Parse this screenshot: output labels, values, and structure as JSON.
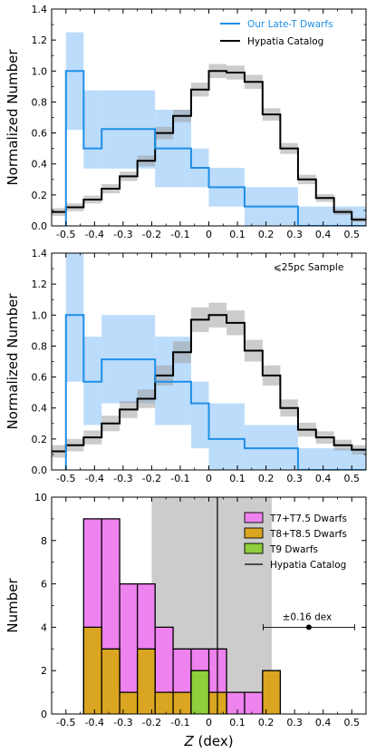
{
  "chart_data": [
    {
      "type": "histogram",
      "panel": "top",
      "ylabel": "Normalized Number",
      "ylim": [
        0,
        1.4
      ],
      "xlim": [
        -0.55,
        0.55
      ],
      "yticks": [
        "0.0",
        "0.2",
        "0.4",
        "0.6",
        "0.8",
        "1.0",
        "1.2",
        "1.4"
      ],
      "xticks": [
        "-0.5",
        "-0.4",
        "-0.3",
        "-0.2",
        "-0.1",
        "0",
        "0.1",
        "0.2",
        "0.3",
        "0.4",
        "0.5"
      ],
      "legend": {
        "position": "top-right",
        "entries": [
          {
            "label": "Our Late-T Dwarfs",
            "color": "#1f8fe6"
          },
          {
            "label": "Hypatia Catalog",
            "color": "#000000"
          }
        ]
      },
      "series": [
        {
          "name": "Our Late-T Dwarfs",
          "color": "#1f8fe6",
          "band_color": "#b8dafb",
          "bins": [
            {
              "x0": -0.5,
              "x1": -0.438,
              "y": 1.0,
              "lo": 0.62,
              "hi": 1.25
            },
            {
              "x0": -0.438,
              "x1": -0.375,
              "y": 0.5,
              "lo": 0.37,
              "hi": 0.875
            },
            {
              "x0": -0.375,
              "x1": -0.188,
              "y": 0.625,
              "lo": 0.37,
              "hi": 0.875
            },
            {
              "x0": -0.188,
              "x1": -0.062,
              "y": 0.5,
              "lo": 0.25,
              "hi": 0.75
            },
            {
              "x0": -0.062,
              "x1": 0.0,
              "y": 0.375,
              "lo": 0.25,
              "hi": 0.5
            },
            {
              "x0": 0.0,
              "x1": 0.125,
              "y": 0.25,
              "lo": 0.125,
              "hi": 0.375
            },
            {
              "x0": 0.125,
              "x1": 0.312,
              "y": 0.125,
              "lo": 0.0,
              "hi": 0.25
            },
            {
              "x0": 0.312,
              "x1": 0.55,
              "y": 0.0,
              "lo": 0.0,
              "hi": 0.125
            }
          ]
        },
        {
          "name": "Hypatia Catalog",
          "color": "#000000",
          "band_color": "#c8c8c8",
          "bins": [
            {
              "x0": -0.55,
              "x1": -0.5,
              "y": 0.09,
              "err": 0.025
            },
            {
              "x0": -0.5,
              "x1": -0.438,
              "y": 0.12,
              "err": 0.025
            },
            {
              "x0": -0.438,
              "x1": -0.375,
              "y": 0.17,
              "err": 0.025
            },
            {
              "x0": -0.375,
              "x1": -0.312,
              "y": 0.24,
              "err": 0.03
            },
            {
              "x0": -0.312,
              "x1": -0.25,
              "y": 0.32,
              "err": 0.03
            },
            {
              "x0": -0.25,
              "x1": -0.188,
              "y": 0.42,
              "err": 0.035
            },
            {
              "x0": -0.188,
              "x1": -0.125,
              "y": 0.6,
              "err": 0.04
            },
            {
              "x0": -0.125,
              "x1": -0.062,
              "y": 0.71,
              "err": 0.04
            },
            {
              "x0": -0.062,
              "x1": 0.0,
              "y": 0.88,
              "err": 0.045
            },
            {
              "x0": 0.0,
              "x1": 0.062,
              "y": 1.0,
              "err": 0.045
            },
            {
              "x0": 0.062,
              "x1": 0.125,
              "y": 0.99,
              "err": 0.045
            },
            {
              "x0": 0.125,
              "x1": 0.188,
              "y": 0.93,
              "err": 0.045
            },
            {
              "x0": 0.188,
              "x1": 0.25,
              "y": 0.72,
              "err": 0.04
            },
            {
              "x0": 0.25,
              "x1": 0.312,
              "y": 0.5,
              "err": 0.035
            },
            {
              "x0": 0.312,
              "x1": 0.375,
              "y": 0.3,
              "err": 0.03
            },
            {
              "x0": 0.375,
              "x1": 0.438,
              "y": 0.18,
              "err": 0.025
            },
            {
              "x0": 0.438,
              "x1": 0.5,
              "y": 0.09,
              "err": 0.02
            },
            {
              "x0": 0.5,
              "x1": 0.55,
              "y": 0.04,
              "err": 0.015
            }
          ]
        }
      ]
    },
    {
      "type": "histogram",
      "panel": "middle",
      "ylabel": "Normalized Number",
      "ylim": [
        0,
        1.4
      ],
      "xlim": [
        -0.55,
        0.55
      ],
      "yticks": [
        "0.0",
        "0.2",
        "0.4",
        "0.6",
        "0.8",
        "1.0",
        "1.2",
        "1.4"
      ],
      "xticks": [
        "-0.5",
        "-0.4",
        "-0.3",
        "-0.2",
        "-0.1",
        "0",
        "0.1",
        "0.2",
        "0.3",
        "0.4",
        "0.5"
      ],
      "annotation": "⩽25pc Sample",
      "series": [
        {
          "name": "Our Late-T Dwarfs",
          "color": "#1f8fe6",
          "band_color": "#b8dafb",
          "bins": [
            {
              "x0": -0.5,
              "x1": -0.438,
              "y": 1.0,
              "lo": 0.57,
              "hi": 1.4
            },
            {
              "x0": -0.438,
              "x1": -0.375,
              "y": 0.57,
              "lo": 0.29,
              "hi": 0.86
            },
            {
              "x0": -0.375,
              "x1": -0.188,
              "y": 0.714,
              "lo": 0.43,
              "hi": 1.0
            },
            {
              "x0": -0.188,
              "x1": -0.062,
              "y": 0.57,
              "lo": 0.29,
              "hi": 0.86
            },
            {
              "x0": -0.062,
              "x1": 0.0,
              "y": 0.43,
              "lo": 0.14,
              "hi": 0.57
            },
            {
              "x0": 0.0,
              "x1": 0.125,
              "y": 0.2,
              "lo": 0.0,
              "hi": 0.43
            },
            {
              "x0": 0.125,
              "x1": 0.312,
              "y": 0.14,
              "lo": 0.0,
              "hi": 0.29
            },
            {
              "x0": 0.312,
              "x1": 0.55,
              "y": 0.0,
              "lo": 0.0,
              "hi": 0.14
            }
          ]
        },
        {
          "name": "Hypatia Catalog",
          "color": "#000000",
          "band_color": "#c8c8c8",
          "bins": [
            {
              "x0": -0.55,
              "x1": -0.5,
              "y": 0.12,
              "err": 0.04
            },
            {
              "x0": -0.5,
              "x1": -0.438,
              "y": 0.16,
              "err": 0.04
            },
            {
              "x0": -0.438,
              "x1": -0.375,
              "y": 0.21,
              "err": 0.045
            },
            {
              "x0": -0.375,
              "x1": -0.312,
              "y": 0.3,
              "err": 0.05
            },
            {
              "x0": -0.312,
              "x1": -0.25,
              "y": 0.39,
              "err": 0.055
            },
            {
              "x0": -0.25,
              "x1": -0.188,
              "y": 0.46,
              "err": 0.06
            },
            {
              "x0": -0.188,
              "x1": -0.125,
              "y": 0.61,
              "err": 0.065
            },
            {
              "x0": -0.125,
              "x1": -0.062,
              "y": 0.76,
              "err": 0.07
            },
            {
              "x0": -0.062,
              "x1": 0.0,
              "y": 0.97,
              "err": 0.08
            },
            {
              "x0": 0.0,
              "x1": 0.062,
              "y": 1.0,
              "err": 0.08
            },
            {
              "x0": 0.062,
              "x1": 0.125,
              "y": 0.95,
              "err": 0.08
            },
            {
              "x0": 0.125,
              "x1": 0.188,
              "y": 0.77,
              "err": 0.07
            },
            {
              "x0": 0.188,
              "x1": 0.25,
              "y": 0.61,
              "err": 0.065
            },
            {
              "x0": 0.25,
              "x1": 0.312,
              "y": 0.4,
              "err": 0.055
            },
            {
              "x0": 0.312,
              "x1": 0.375,
              "y": 0.26,
              "err": 0.045
            },
            {
              "x0": 0.375,
              "x1": 0.438,
              "y": 0.21,
              "err": 0.04
            },
            {
              "x0": 0.438,
              "x1": 0.5,
              "y": 0.16,
              "err": 0.035
            },
            {
              "x0": 0.5,
              "x1": 0.55,
              "y": 0.13,
              "err": 0.03
            }
          ]
        }
      ]
    },
    {
      "type": "stacked-histogram",
      "panel": "bottom",
      "ylabel": "Number",
      "xlabel_italic": "Z",
      "xlabel_rest": " (dex)",
      "ylim": [
        0,
        10
      ],
      "xlim": [
        -0.55,
        0.55
      ],
      "yticks": [
        "0",
        "2",
        "4",
        "6",
        "8",
        "10"
      ],
      "xticks": [
        "-0.5",
        "-0.4",
        "-0.3",
        "-0.2",
        "-0.1",
        "0",
        "0.1",
        "0.2",
        "0.3",
        "0.4",
        "0.5"
      ],
      "hypatia_line": {
        "x": 0.03,
        "band": [
          -0.2,
          0.22
        ],
        "label": "Hypatia Catalog"
      },
      "error_bar": {
        "x": 0.35,
        "y": 4,
        "xerr": 0.16,
        "label": "±0.16 dex"
      },
      "legend": {
        "position": "top-right"
      },
      "series": [
        {
          "name": "T7+T7.5 Dwarfs",
          "color": "#ee82ee",
          "bins": [
            {
              "x0": -0.438,
              "x1": -0.375,
              "y": 9
            },
            {
              "x0": -0.375,
              "x1": -0.312,
              "y": 9
            },
            {
              "x0": -0.312,
              "x1": -0.25,
              "y": 6
            },
            {
              "x0": -0.25,
              "x1": -0.188,
              "y": 6
            },
            {
              "x0": -0.188,
              "x1": -0.125,
              "y": 4
            },
            {
              "x0": -0.125,
              "x1": -0.062,
              "y": 3
            },
            {
              "x0": -0.062,
              "x1": 0.0,
              "y": 3
            },
            {
              "x0": 0.0,
              "x1": 0.062,
              "y": 3
            },
            {
              "x0": 0.062,
              "x1": 0.125,
              "y": 1
            },
            {
              "x0": 0.125,
              "x1": 0.188,
              "y": 1
            }
          ]
        },
        {
          "name": "T8+T8.5 Dwarfs",
          "color": "#daa520",
          "bins": [
            {
              "x0": -0.438,
              "x1": -0.375,
              "y": 4
            },
            {
              "x0": -0.375,
              "x1": -0.312,
              "y": 3
            },
            {
              "x0": -0.312,
              "x1": -0.25,
              "y": 1
            },
            {
              "x0": -0.25,
              "x1": -0.188,
              "y": 3
            },
            {
              "x0": -0.188,
              "x1": -0.125,
              "y": 1
            },
            {
              "x0": -0.125,
              "x1": -0.062,
              "y": 1
            },
            {
              "x0": -0.062,
              "x1": 0.0,
              "y": 2
            },
            {
              "x0": 0.0,
              "x1": 0.062,
              "y": 1
            },
            {
              "x0": 0.188,
              "x1": 0.25,
              "y": 2
            }
          ]
        },
        {
          "name": "T9 Dwarfs",
          "color": "#8fce3c",
          "bins": [
            {
              "x0": -0.062,
              "x1": 0.0,
              "y": 2
            }
          ]
        }
      ]
    }
  ]
}
